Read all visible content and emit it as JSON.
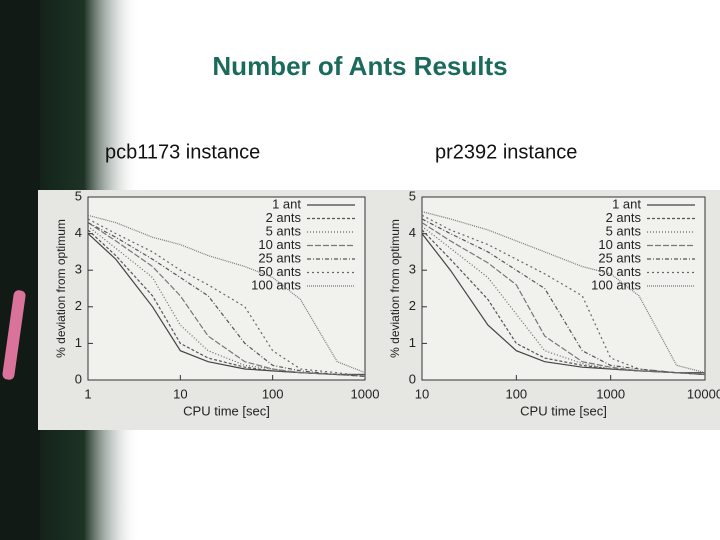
{
  "title": "Number of Ants Results",
  "captions": [
    "pcb1173 instance",
    "pr2392 instance"
  ],
  "chart_data": [
    {
      "type": "line",
      "xlabel": "CPU time [sec]",
      "ylabel": "% deviation from optimum",
      "xlog": true,
      "x": [
        1,
        2,
        5,
        10,
        20,
        50,
        100,
        200,
        500,
        1000
      ],
      "xlim": [
        1,
        1000
      ],
      "xticks": [
        1,
        10,
        100,
        1000
      ],
      "ylim": [
        0,
        5
      ],
      "yticks": [
        0,
        1,
        2,
        3,
        4,
        5
      ],
      "legend": "upper right",
      "series": [
        {
          "name": "1 ant",
          "color": "#444444",
          "values": [
            4.0,
            3.3,
            2.0,
            0.8,
            0.5,
            0.3,
            0.25,
            0.2,
            0.15,
            0.15
          ]
        },
        {
          "name": "2 ants",
          "color": "#555555",
          "values": [
            4.1,
            3.4,
            2.3,
            1.0,
            0.6,
            0.35,
            0.25,
            0.2,
            0.15,
            0.15
          ]
        },
        {
          "name": "5 ants",
          "color": "#666666",
          "values": [
            4.2,
            3.6,
            2.8,
            1.5,
            0.8,
            0.4,
            0.3,
            0.2,
            0.15,
            0.15
          ]
        },
        {
          "name": "10 ants",
          "color": "#777777",
          "values": [
            4.3,
            3.8,
            3.1,
            2.3,
            1.2,
            0.5,
            0.3,
            0.2,
            0.15,
            0.1
          ]
        },
        {
          "name": "25 ants",
          "color": "#555555",
          "values": [
            4.3,
            3.9,
            3.3,
            2.8,
            2.3,
            1.0,
            0.4,
            0.25,
            0.15,
            0.1
          ]
        },
        {
          "name": "50 ants",
          "color": "#666666",
          "values": [
            4.4,
            4.0,
            3.5,
            3.0,
            2.6,
            2.0,
            0.8,
            0.3,
            0.2,
            0.1
          ]
        },
        {
          "name": "100 ants",
          "color": "#777777",
          "values": [
            4.5,
            4.3,
            3.9,
            3.7,
            3.4,
            3.1,
            2.8,
            2.2,
            0.5,
            0.2
          ]
        }
      ]
    },
    {
      "type": "line",
      "xlabel": "CPU time [sec]",
      "ylabel": "% deviation from optimum",
      "xlog": true,
      "x": [
        10,
        20,
        50,
        100,
        200,
        500,
        1000,
        2000,
        5000,
        10000
      ],
      "xlim": [
        10,
        10000
      ],
      "xticks": [
        10,
        100,
        1000,
        10000
      ],
      "ylim": [
        0,
        5
      ],
      "yticks": [
        0,
        1,
        2,
        3,
        4,
        5
      ],
      "legend": "upper right",
      "series": [
        {
          "name": "1 ant",
          "color": "#444444",
          "values": [
            4.0,
            3.0,
            1.5,
            0.8,
            0.5,
            0.35,
            0.3,
            0.25,
            0.2,
            0.2
          ]
        },
        {
          "name": "2 ants",
          "color": "#555555",
          "values": [
            4.1,
            3.3,
            2.2,
            1.0,
            0.6,
            0.4,
            0.3,
            0.25,
            0.2,
            0.15
          ]
        },
        {
          "name": "5 ants",
          "color": "#666666",
          "values": [
            4.2,
            3.6,
            2.8,
            1.8,
            0.8,
            0.45,
            0.3,
            0.25,
            0.2,
            0.15
          ]
        },
        {
          "name": "10 ants",
          "color": "#777777",
          "values": [
            4.3,
            3.8,
            3.2,
            2.6,
            1.2,
            0.5,
            0.35,
            0.25,
            0.2,
            0.15
          ]
        },
        {
          "name": "25 ants",
          "color": "#555555",
          "values": [
            4.4,
            4.0,
            3.5,
            3.0,
            2.5,
            0.8,
            0.4,
            0.3,
            0.2,
            0.15
          ]
        },
        {
          "name": "50 ants",
          "color": "#666666",
          "values": [
            4.5,
            4.1,
            3.7,
            3.3,
            2.9,
            2.3,
            0.6,
            0.3,
            0.2,
            0.15
          ]
        },
        {
          "name": "100 ants",
          "color": "#777777",
          "values": [
            4.6,
            4.4,
            4.1,
            3.8,
            3.5,
            3.1,
            2.9,
            2.3,
            0.4,
            0.2
          ]
        }
      ]
    }
  ]
}
